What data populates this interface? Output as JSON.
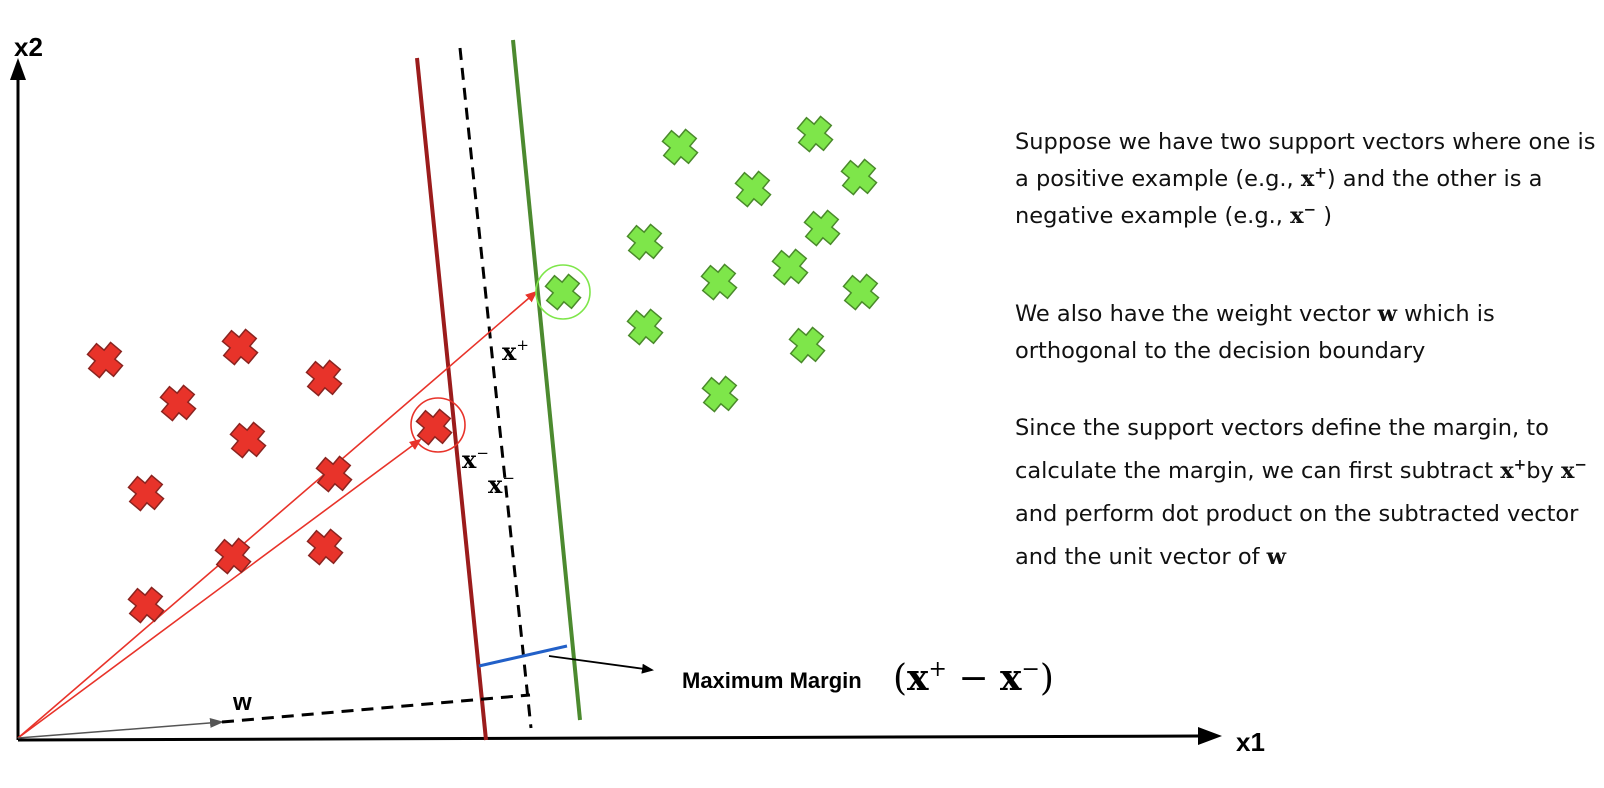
{
  "axes": {
    "x_label": "x1",
    "y_label": "x2"
  },
  "labels": {
    "w": "w",
    "x": "x",
    "plus": "+",
    "minus": "−",
    "max_margin": "Maximum Margin",
    "margin_expr_open": "(",
    "margin_expr_x": "x",
    "margin_expr_op": " − ",
    "margin_expr_close": ")"
  },
  "classes": {
    "positive": {
      "color": "#7ee64a",
      "outline": "#4a8a2b"
    },
    "negative": {
      "color": "#e8332a",
      "outline": "#8a2420"
    }
  },
  "lines": {
    "negative_boundary_color": "#9b1c1c",
    "positive_boundary_color": "#4c8a2f",
    "decision_boundary_color": "#000000",
    "margin_segment_color": "#2260c8",
    "vector_color": "#e8332a"
  },
  "explanation": {
    "p1_a": "Suppose we have two support vectors where one is a positive example (e.g., ",
    "p1_b": ") and the other is a negative example (e.g.,",
    "p1_c": " )",
    "p2_a": "We also have the weight vector ",
    "p2_w": "w",
    "p2_b": " which is orthogonal to the decision boundary",
    "p3_a": "Since the support vectors define the margin, to calculate the margin, we can first subtract ",
    "p3_b": "by ",
    "p3_c": " and perform dot product on the subtracted vector and the unit vector of ",
    "p3_w": "w",
    "x": "x",
    "plus": "+",
    "minus": "−"
  }
}
